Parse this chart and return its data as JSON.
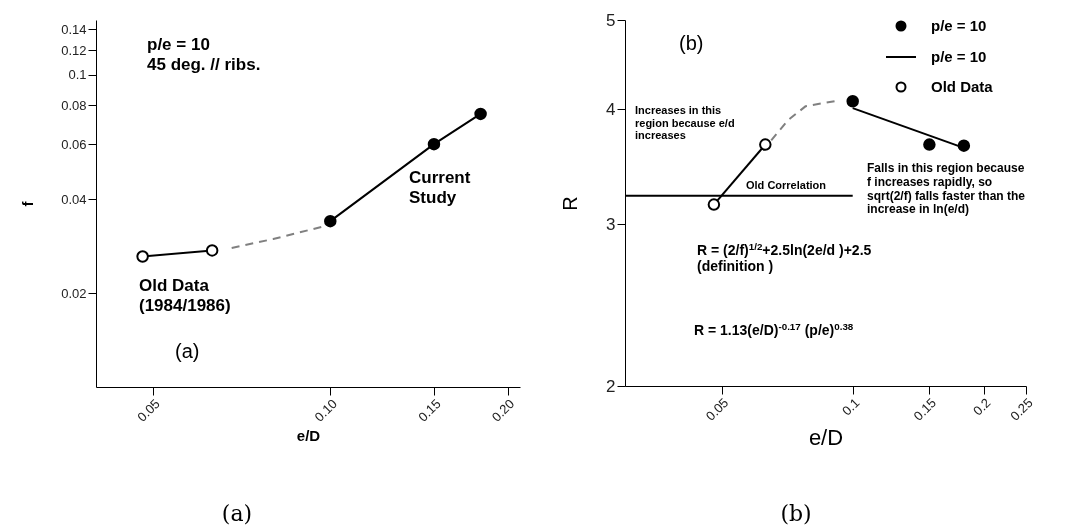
{
  "chart_data": [
    {
      "type": "line",
      "xlabel": "e/D",
      "ylabel": "f",
      "log": "xy",
      "xlim": [
        0.04,
        0.21
      ],
      "xticks": [
        0.05,
        {
          "value": 0.1,
          "label": "0.10"
        },
        0.15,
        {
          "value": 0.2,
          "label": "0.20"
        }
      ],
      "ylim": [
        0.01,
        0.15
      ],
      "yticks": [
        0.02,
        0.04,
        0.06,
        0.08,
        0.1,
        0.12,
        0.14
      ],
      "series": [
        {
          "color": "#000000",
          "marker": "circle-open",
          "line_style": "solid",
          "x": [
            0.048,
            0.063
          ],
          "values": [
            0.0262,
            0.0274
          ]
        },
        {
          "color": "#000000",
          "marker": "circle",
          "line_style": "solid",
          "x": [
            0.1,
            0.15,
            0.18
          ],
          "values": [
            0.034,
            0.06,
            0.075
          ]
        },
        {
          "color": "#808080",
          "marker": "none",
          "line_style": "dashed",
          "x": [
            0.068,
            0.08,
            0.098
          ],
          "values": [
            0.0279,
            0.0298,
            0.0328
          ]
        }
      ],
      "annotations": [
        "p/e = 10\n45 deg. // ribs.",
        "Old Data\n(1984/1986)",
        "Current\nStudy",
        "(a)",
        "(a)"
      ]
    },
    {
      "type": "line",
      "xlabel": "e/D",
      "ylabel": "R",
      "log": "xy",
      "legend": "top right",
      "xlim": [
        0.03,
        0.25
      ],
      "xticks": [
        0.05,
        0.1,
        0.15,
        0.2,
        0.25
      ],
      "ylim": [
        2,
        5
      ],
      "yticks": [
        2,
        3,
        4,
        5
      ],
      "series": [
        {
          "name": "p/e = 10",
          "type": "scatter",
          "color": "#000000",
          "marker": "circle",
          "x": [
            0.1,
            0.15,
            0.18
          ],
          "values": [
            4.08,
            3.66,
            3.65
          ]
        },
        {
          "name": "p/e = 10",
          "type": "line",
          "color": "#000000",
          "marker": "none",
          "line_style": "solid",
          "x": [
            0.1,
            0.18
          ],
          "values": [
            4.01,
            3.63
          ]
        },
        {
          "name": "Old Data",
          "type": "line",
          "color": "#000000",
          "marker": "circle-open",
          "line_style": "solid",
          "x": [
            0.048,
            0.063
          ],
          "values": [
            3.15,
            3.66
          ]
        },
        {
          "type": "line",
          "color": "#808080",
          "marker": "none",
          "line_style": "dashed",
          "x": [
            0.065,
            0.071,
            0.078,
            0.091
          ],
          "values": [
            3.7,
            3.89,
            4.03,
            4.08
          ]
        },
        {
          "type": "line",
          "color": "#000000",
          "marker": "none",
          "line_style": "solid",
          "x": [
            0.03,
            0.1
          ],
          "values": [
            3.22,
            3.22
          ]
        }
      ],
      "annotations": [
        "(b)",
        "Increases in this\nregion because e/d\nincreases",
        "Old Correlation",
        "Falls in this region because\nf increases rapidly, so\nsqrt(2/f) falls faster than the\nincrease in ln(e/d)",
        "R = (2/f)$^{1/2}$+2.5ln(2e/d )+2.5\n(definition )",
        "R = 1.13(e/D)$^{-0.17}$ (p/e)$^{0.38}$",
        "(b)"
      ]
    }
  ]
}
